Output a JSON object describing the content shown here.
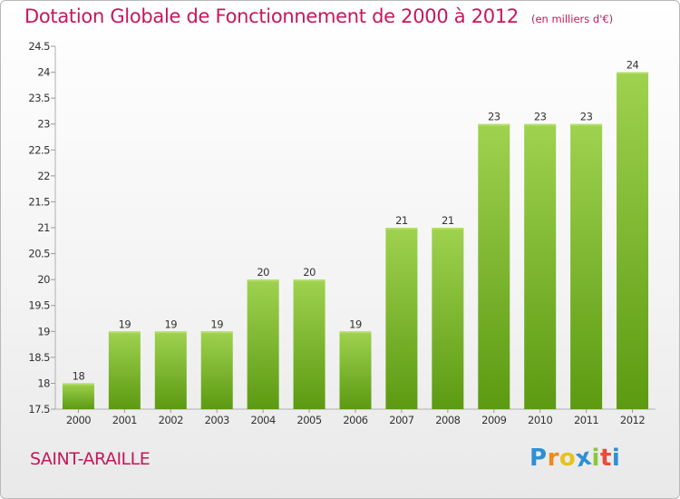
{
  "chart_data": {
    "type": "bar",
    "title": "Dotation Globale de Fonctionnement de 2000 à 2012",
    "unit_label": "(en milliers d'€)",
    "categories": [
      "2000",
      "2001",
      "2002",
      "2003",
      "2004",
      "2005",
      "2006",
      "2007",
      "2008",
      "2009",
      "2010",
      "2011",
      "2012"
    ],
    "values": [
      18,
      19,
      19,
      19,
      20,
      20,
      19,
      21,
      21,
      23,
      23,
      23,
      24
    ],
    "value_labels": [
      "18",
      "19",
      "19",
      "19",
      "20",
      "20",
      "19",
      "21",
      "21",
      "23",
      "23",
      "23",
      "24"
    ],
    "ylim": [
      17.5,
      24.5
    ],
    "yticks": [
      "17.5",
      "18",
      "18.5",
      "19",
      "19.5",
      "20",
      "20.5",
      "21",
      "21.5",
      "22",
      "22.5",
      "23",
      "23.5",
      "24",
      "24.5"
    ],
    "grid": false,
    "colors": {
      "bar_top": "#9fd24f",
      "bar_bottom": "#5c9a12",
      "title": "#c8175b"
    }
  },
  "commune": "SAINT-ARAILLE",
  "brand": {
    "letters": [
      "P",
      "r",
      "o",
      "x",
      "i",
      "t",
      "i"
    ],
    "colors": [
      "#2f8fd4",
      "#f08a1c",
      "#e8c21a",
      "#2f8fd4",
      "#8cc63f",
      "#e84b3a",
      "#2f8fd4"
    ]
  }
}
